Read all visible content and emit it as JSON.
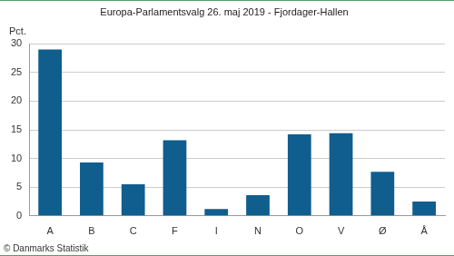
{
  "chart_data": {
    "type": "bar",
    "title": "Europa-Parlamentsvalg 26. maj 2019 - Fjordager-Hallen",
    "ylabel": "Pct.",
    "caption": "© Danmarks Statistik",
    "categories": [
      "A",
      "B",
      "C",
      "F",
      "I",
      "N",
      "O",
      "V",
      "Ø",
      "Å"
    ],
    "values": [
      29.0,
      9.3,
      5.5,
      13.2,
      1.2,
      3.6,
      14.2,
      14.4,
      7.7,
      2.5
    ],
    "color": "#0f5e8e",
    "ylim": [
      0,
      30
    ],
    "yticks": [
      0,
      5,
      10,
      15,
      20,
      25,
      30
    ],
    "grid": true
  }
}
